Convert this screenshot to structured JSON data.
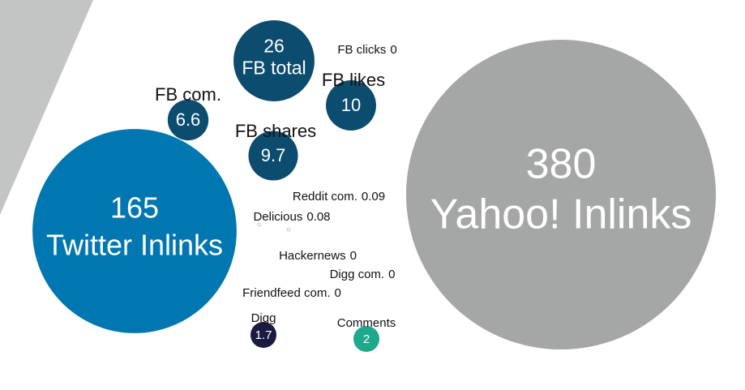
{
  "chart_data": {
    "type": "bubble",
    "items": [
      {
        "name": "Yahoo! Inlinks",
        "value": 380,
        "color": "#a5a7a6"
      },
      {
        "name": "Twitter Inlinks",
        "value": 165,
        "color": "#0077b0"
      },
      {
        "name": "FB total",
        "value": 26,
        "color": "#0c4c6e"
      },
      {
        "name": "FB likes",
        "value": 10,
        "color": "#0c4c6e"
      },
      {
        "name": "FB com.",
        "value": 6.6,
        "color": "#0c4c6e"
      },
      {
        "name": "FB shares",
        "value": 9.7,
        "color": "#0c4c6e"
      },
      {
        "name": "Digg",
        "value": 1.7,
        "color": "#1b1a40"
      },
      {
        "name": "Comments",
        "value": 2,
        "color": "#1ea98c"
      },
      {
        "name": "FB clicks",
        "value": 0,
        "color": "#ffffff"
      },
      {
        "name": "Reddit com.",
        "value": 0.09,
        "color": "#ffffff"
      },
      {
        "name": "Delicious",
        "value": 0.08,
        "color": "#ffffff"
      },
      {
        "name": "Hackernews",
        "value": 0,
        "color": "#ffffff"
      },
      {
        "name": "Digg com.",
        "value": 0,
        "color": "#ffffff"
      },
      {
        "name": "Friendfeed com.",
        "value": 0,
        "color": "#ffffff"
      }
    ]
  }
}
